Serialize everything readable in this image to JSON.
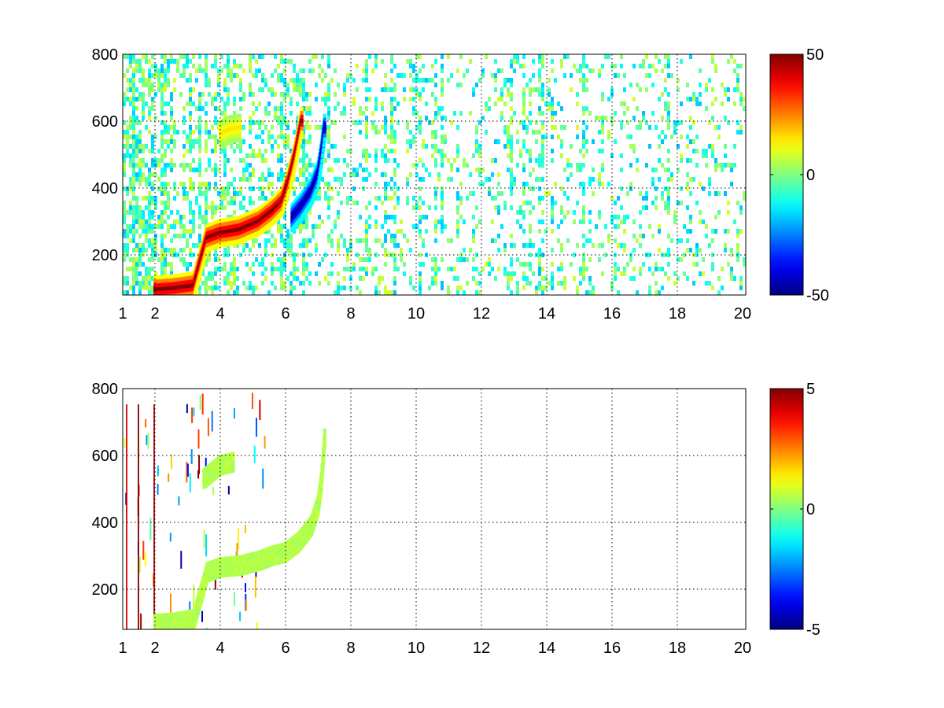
{
  "chart_data": [
    {
      "type": "heatmap",
      "title": "",
      "xlabel": "",
      "ylabel": "",
      "xlim": [
        1,
        20
      ],
      "ylim": [
        80,
        800
      ],
      "x_scale": "nonlinear",
      "x_ticks": [
        1,
        2,
        4,
        6,
        8,
        10,
        12,
        14,
        16,
        18,
        20
      ],
      "x_tick_labels": [
        "1",
        "2",
        "4",
        "6",
        "8",
        "10",
        "12",
        "14",
        "16",
        "18",
        "20"
      ],
      "y_ticks": [
        200,
        400,
        600,
        800
      ],
      "y_tick_labels": [
        "200",
        "400",
        "600",
        "800"
      ],
      "grid": true,
      "colormap": "jet",
      "colorbar": {
        "min": -50,
        "max": 50,
        "placement": "right",
        "tick_labels": [
          "50",
          "0",
          "-50"
        ],
        "ticks": [
          50,
          0,
          -50
        ]
      },
      "features": [
        {
          "name": "ridge-positive",
          "sign": "positive",
          "points": [
            [
              2.0,
              95
            ],
            [
              2.6,
              100
            ],
            [
              3.2,
              108
            ],
            [
              3.6,
              250
            ],
            [
              4.0,
              265
            ],
            [
              4.6,
              275
            ],
            [
              5.2,
              300
            ],
            [
              5.6,
              330
            ],
            [
              5.9,
              360
            ],
            [
              6.1,
              420
            ],
            [
              6.3,
              500
            ],
            [
              6.5,
              600
            ]
          ]
        },
        {
          "name": "ridge-negative",
          "sign": "negative",
          "points": [
            [
              6.2,
              310
            ],
            [
              6.5,
              345
            ],
            [
              6.8,
              390
            ],
            [
              7.0,
              440
            ],
            [
              7.1,
              500
            ],
            [
              7.2,
              580
            ]
          ]
        },
        {
          "name": "arc-faint",
          "sign": "positive",
          "points": [
            [
              4.0,
              560
            ],
            [
              4.3,
              575
            ],
            [
              4.6,
              580
            ]
          ]
        }
      ]
    },
    {
      "type": "heatmap",
      "title": "",
      "xlabel": "",
      "ylabel": "",
      "xlim": [
        1,
        20
      ],
      "ylim": [
        80,
        800
      ],
      "x_scale": "nonlinear",
      "x_ticks": [
        1,
        2,
        4,
        6,
        8,
        10,
        12,
        14,
        16,
        18,
        20
      ],
      "x_tick_labels": [
        "1",
        "2",
        "4",
        "6",
        "8",
        "10",
        "12",
        "14",
        "16",
        "18",
        "20"
      ],
      "y_ticks": [
        200,
        400,
        600,
        800
      ],
      "y_tick_labels": [
        "200",
        "400",
        "600",
        "800"
      ],
      "grid": true,
      "colormap": "jet",
      "colorbar": {
        "min": -5,
        "max": 5,
        "placement": "right",
        "tick_labels": [
          "5",
          "0",
          "-5"
        ],
        "ticks": [
          5,
          0,
          -5
        ]
      },
      "features": [
        {
          "name": "ridge-lower",
          "points": [
            [
              2.0,
              95
            ],
            [
              2.6,
              100
            ],
            [
              3.2,
              110
            ],
            [
              3.6,
              250
            ],
            [
              4.0,
              265
            ],
            [
              4.6,
              270
            ],
            [
              5.2,
              285
            ],
            [
              5.6,
              300
            ],
            [
              6.0,
              310
            ]
          ]
        },
        {
          "name": "ridge-upper",
          "points": [
            [
              6.0,
              310
            ],
            [
              6.4,
              340
            ],
            [
              6.8,
              390
            ],
            [
              7.0,
              450
            ],
            [
              7.1,
              520
            ],
            [
              7.2,
              650
            ]
          ]
        },
        {
          "name": "arc-faint",
          "points": [
            [
              3.5,
              530
            ],
            [
              4.0,
              570
            ],
            [
              4.4,
              580
            ]
          ]
        }
      ]
    }
  ]
}
